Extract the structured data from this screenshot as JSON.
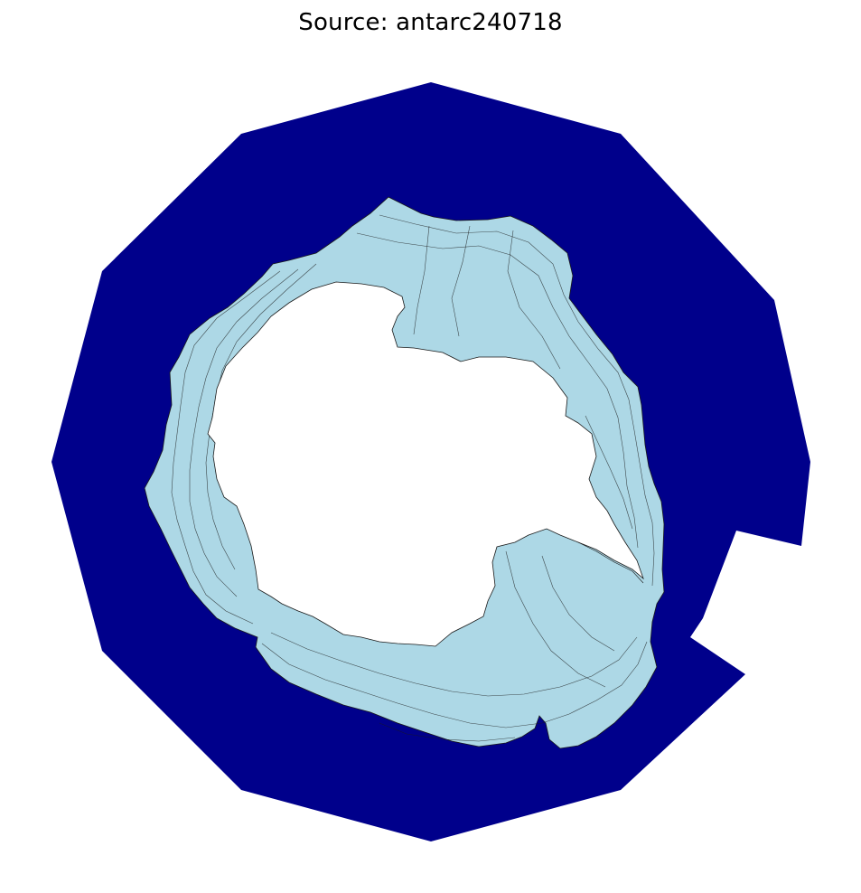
{
  "title": "Source: antarc240718",
  "colors": {
    "ocean": "#00008b",
    "sea_ice": "#add8e6",
    "land": "#ffffff",
    "outline": "#1a1a1a",
    "background": "#ffffff"
  }
}
